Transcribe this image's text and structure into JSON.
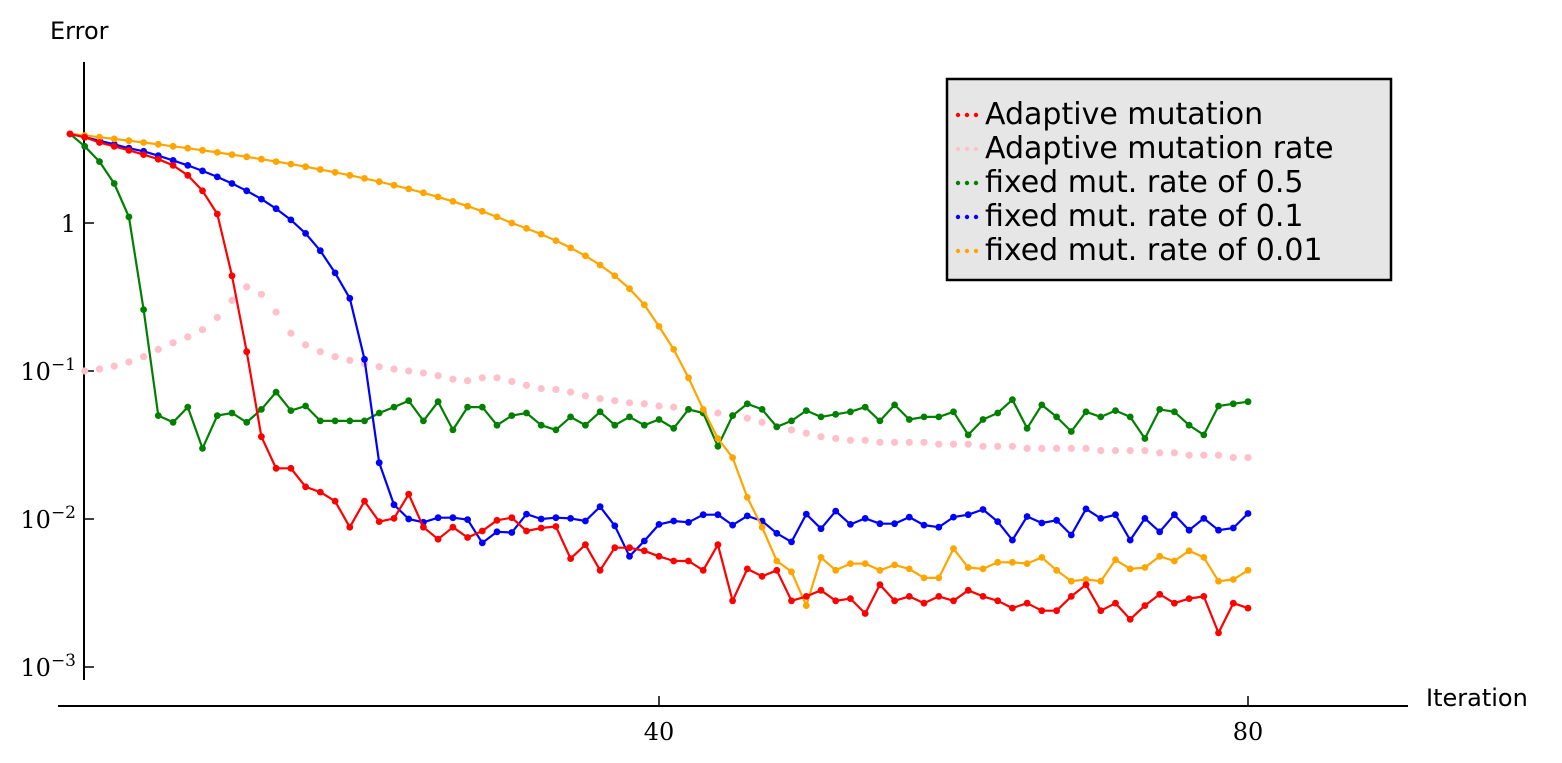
{
  "chart_data": {
    "type": "line",
    "xlabel": "Iteration",
    "ylabel": "Error",
    "xscale": "linear",
    "yscale": "log",
    "xlim": [
      -1,
      91
    ],
    "ylim": [
      0.0006,
      22
    ],
    "xticks": [
      {
        "value": 40,
        "label": "40"
      },
      {
        "value": 80,
        "label": "80"
      }
    ],
    "yticks": [
      {
        "value": 1,
        "base": "1",
        "exp": ""
      },
      {
        "value": 0.1,
        "base": "10",
        "exp": "−1"
      },
      {
        "value": 0.01,
        "base": "10",
        "exp": "−2"
      },
      {
        "value": 0.001,
        "base": "10",
        "exp": "−3"
      }
    ],
    "legend": {
      "position": "top-right",
      "background": "#e6e6e6"
    },
    "series": [
      {
        "name": "Adaptive mutation",
        "color": "#ff0000",
        "style": "line-markers",
        "x": [
          0,
          1,
          2,
          3,
          4,
          5,
          6,
          7,
          8,
          9,
          10,
          11,
          12,
          13,
          14,
          15,
          16,
          17,
          18,
          19,
          20,
          21,
          22,
          23,
          24,
          25,
          26,
          27,
          28,
          29,
          30,
          31,
          32,
          33,
          34,
          35,
          36,
          37,
          38,
          39,
          40,
          41,
          42,
          43,
          44,
          45,
          46,
          47,
          48,
          49,
          50,
          51,
          52,
          53,
          54,
          55,
          56,
          57,
          58,
          59,
          60,
          61,
          62,
          63,
          64,
          65,
          66,
          67,
          68,
          69,
          70,
          71,
          72,
          73,
          74,
          75,
          76,
          77,
          78,
          79,
          80
        ],
        "y": [
          4.0,
          3.8,
          3.5,
          3.3,
          3.1,
          2.9,
          2.7,
          2.45,
          2.1,
          1.65,
          1.15,
          0.44,
          0.135,
          0.036,
          0.022,
          0.022,
          0.0165,
          0.0152,
          0.0132,
          0.0088,
          0.0132,
          0.0096,
          0.0101,
          0.0147,
          0.0088,
          0.0073,
          0.0088,
          0.0075,
          0.0083,
          0.0098,
          0.0102,
          0.0083,
          0.0087,
          0.0089,
          0.0054,
          0.0067,
          0.0045,
          0.0064,
          0.0064,
          0.0061,
          0.0056,
          0.0052,
          0.0052,
          0.0045,
          0.0067,
          0.0028,
          0.0046,
          0.0041,
          0.0045,
          0.0028,
          0.003,
          0.0033,
          0.0028,
          0.0029,
          0.0023,
          0.0036,
          0.0028,
          0.003,
          0.0027,
          0.003,
          0.0028,
          0.0033,
          0.003,
          0.0028,
          0.0025,
          0.0027,
          0.0024,
          0.0024,
          0.003,
          0.0036,
          0.0024,
          0.0027,
          0.0021,
          0.0026,
          0.0031,
          0.0027,
          0.0029,
          0.003,
          0.0017,
          0.0027,
          0.0025
        ]
      },
      {
        "name": "Adaptive mutation rate",
        "color": "#ffc0cb",
        "style": "dotted-markers",
        "x": [
          1,
          2,
          3,
          4,
          5,
          6,
          7,
          8,
          9,
          10,
          11,
          12,
          13,
          14,
          15,
          16,
          17,
          18,
          19,
          20,
          21,
          22,
          23,
          24,
          25,
          26,
          27,
          28,
          29,
          30,
          31,
          32,
          33,
          34,
          35,
          36,
          37,
          38,
          39,
          40,
          41,
          42,
          43,
          44,
          45,
          46,
          47,
          48,
          49,
          50,
          51,
          52,
          53,
          54,
          55,
          56,
          57,
          58,
          59,
          60,
          61,
          62,
          63,
          64,
          65,
          66,
          67,
          68,
          69,
          70,
          71,
          72,
          73,
          74,
          75,
          76,
          77,
          78,
          79,
          80
        ],
        "y": [
          0.1,
          0.103,
          0.108,
          0.115,
          0.125,
          0.14,
          0.155,
          0.17,
          0.19,
          0.23,
          0.3,
          0.37,
          0.33,
          0.25,
          0.18,
          0.15,
          0.135,
          0.125,
          0.118,
          0.112,
          0.107,
          0.103,
          0.1,
          0.097,
          0.093,
          0.088,
          0.086,
          0.09,
          0.09,
          0.085,
          0.08,
          0.076,
          0.075,
          0.072,
          0.068,
          0.065,
          0.063,
          0.061,
          0.06,
          0.058,
          0.057,
          0.055,
          0.053,
          0.052,
          0.05,
          0.048,
          0.045,
          0.042,
          0.04,
          0.038,
          0.036,
          0.035,
          0.034,
          0.034,
          0.033,
          0.033,
          0.033,
          0.033,
          0.032,
          0.032,
          0.032,
          0.031,
          0.031,
          0.031,
          0.03,
          0.03,
          0.03,
          0.03,
          0.03,
          0.029,
          0.029,
          0.029,
          0.029,
          0.028,
          0.028,
          0.027,
          0.027,
          0.027,
          0.026,
          0.026
        ]
      },
      {
        "name": "fixed mut. rate of 0.5",
        "color": "#008000",
        "style": "line-markers",
        "x": [
          0,
          1,
          2,
          3,
          4,
          5,
          6,
          7,
          8,
          9,
          10,
          11,
          12,
          13,
          14,
          15,
          16,
          17,
          18,
          19,
          20,
          21,
          22,
          23,
          24,
          25,
          26,
          27,
          28,
          29,
          30,
          31,
          32,
          33,
          34,
          35,
          36,
          37,
          38,
          39,
          40,
          41,
          42,
          43,
          44,
          45,
          46,
          47,
          48,
          49,
          50,
          51,
          52,
          53,
          54,
          55,
          56,
          57,
          58,
          59,
          60,
          61,
          62,
          63,
          64,
          65,
          66,
          67,
          68,
          69,
          70,
          71,
          72,
          73,
          74,
          75,
          76,
          77,
          78,
          79,
          80
        ],
        "y": [
          4.0,
          3.3,
          2.6,
          1.85,
          1.1,
          0.26,
          0.05,
          0.045,
          0.057,
          0.03,
          0.05,
          0.052,
          0.045,
          0.055,
          0.072,
          0.054,
          0.058,
          0.046,
          0.046,
          0.046,
          0.046,
          0.052,
          0.057,
          0.063,
          0.046,
          0.062,
          0.04,
          0.057,
          0.057,
          0.043,
          0.05,
          0.052,
          0.043,
          0.04,
          0.049,
          0.043,
          0.053,
          0.043,
          0.049,
          0.043,
          0.047,
          0.041,
          0.055,
          0.052,
          0.031,
          0.05,
          0.06,
          0.055,
          0.042,
          0.046,
          0.054,
          0.049,
          0.051,
          0.053,
          0.057,
          0.046,
          0.059,
          0.047,
          0.049,
          0.049,
          0.053,
          0.037,
          0.047,
          0.052,
          0.064,
          0.041,
          0.059,
          0.049,
          0.039,
          0.053,
          0.049,
          0.054,
          0.049,
          0.035,
          0.055,
          0.053,
          0.043,
          0.037,
          0.058,
          0.06,
          0.062
        ]
      },
      {
        "name": "fixed mut. rate of 0.1",
        "color": "#0000ff",
        "style": "line-markers",
        "x": [
          0,
          1,
          2,
          3,
          4,
          5,
          6,
          7,
          8,
          9,
          10,
          11,
          12,
          13,
          14,
          15,
          16,
          17,
          18,
          19,
          20,
          21,
          22,
          23,
          24,
          25,
          26,
          27,
          28,
          29,
          30,
          31,
          32,
          33,
          34,
          35,
          36,
          37,
          38,
          39,
          40,
          41,
          42,
          43,
          44,
          45,
          46,
          47,
          48,
          49,
          50,
          51,
          52,
          53,
          54,
          55,
          56,
          57,
          58,
          59,
          60,
          61,
          62,
          63,
          64,
          65,
          66,
          67,
          68,
          69,
          70,
          71,
          72,
          73,
          74,
          75,
          76,
          77,
          78,
          79,
          80
        ],
        "y": [
          4.0,
          3.8,
          3.6,
          3.4,
          3.2,
          3.05,
          2.85,
          2.65,
          2.45,
          2.25,
          2.05,
          1.85,
          1.65,
          1.45,
          1.25,
          1.05,
          0.85,
          0.65,
          0.46,
          0.31,
          0.12,
          0.024,
          0.0125,
          0.01,
          0.0095,
          0.0102,
          0.0102,
          0.0099,
          0.0069,
          0.0082,
          0.0081,
          0.0108,
          0.01,
          0.0102,
          0.0101,
          0.0097,
          0.0121,
          0.009,
          0.0056,
          0.0071,
          0.0092,
          0.0097,
          0.0095,
          0.0107,
          0.0107,
          0.0091,
          0.0105,
          0.0097,
          0.008,
          0.007,
          0.0108,
          0.0086,
          0.0113,
          0.0092,
          0.0101,
          0.0093,
          0.0093,
          0.0103,
          0.0091,
          0.0088,
          0.0103,
          0.0107,
          0.0116,
          0.0096,
          0.0072,
          0.0104,
          0.0094,
          0.0098,
          0.0078,
          0.0117,
          0.0101,
          0.0107,
          0.0072,
          0.0101,
          0.0082,
          0.0107,
          0.0084,
          0.0101,
          0.0084,
          0.0087,
          0.0109
        ]
      },
      {
        "name": "fixed mut. rate of 0.01",
        "color": "#ffa500",
        "style": "line-markers",
        "x": [
          0,
          1,
          2,
          3,
          4,
          5,
          6,
          7,
          8,
          9,
          10,
          11,
          12,
          13,
          14,
          15,
          16,
          17,
          18,
          19,
          20,
          21,
          22,
          23,
          24,
          25,
          26,
          27,
          28,
          29,
          30,
          31,
          32,
          33,
          34,
          35,
          36,
          37,
          38,
          39,
          40,
          41,
          42,
          43,
          44,
          45,
          46,
          47,
          48,
          49,
          50,
          51,
          52,
          53,
          54,
          55,
          56,
          57,
          58,
          59,
          60,
          61,
          62,
          63,
          64,
          65,
          66,
          67,
          68,
          69,
          70,
          71,
          72,
          73,
          74,
          75,
          76,
          77,
          78,
          79,
          80
        ],
        "y": [
          4.0,
          3.9,
          3.8,
          3.7,
          3.6,
          3.5,
          3.4,
          3.3,
          3.2,
          3.1,
          3.0,
          2.9,
          2.8,
          2.7,
          2.6,
          2.5,
          2.4,
          2.3,
          2.2,
          2.1,
          2.0,
          1.9,
          1.8,
          1.7,
          1.6,
          1.5,
          1.4,
          1.3,
          1.2,
          1.1,
          1.0,
          0.92,
          0.84,
          0.76,
          0.68,
          0.6,
          0.52,
          0.44,
          0.36,
          0.28,
          0.2,
          0.14,
          0.09,
          0.055,
          0.035,
          0.026,
          0.014,
          0.0088,
          0.0052,
          0.0044,
          0.0026,
          0.0055,
          0.0045,
          0.005,
          0.005,
          0.0045,
          0.0049,
          0.0046,
          0.004,
          0.004,
          0.0063,
          0.0047,
          0.0046,
          0.0051,
          0.0051,
          0.005,
          0.0055,
          0.0045,
          0.0038,
          0.0039,
          0.0038,
          0.0053,
          0.0046,
          0.0047,
          0.0056,
          0.0052,
          0.0061,
          0.0055,
          0.0038,
          0.0039,
          0.0045
        ]
      }
    ]
  }
}
